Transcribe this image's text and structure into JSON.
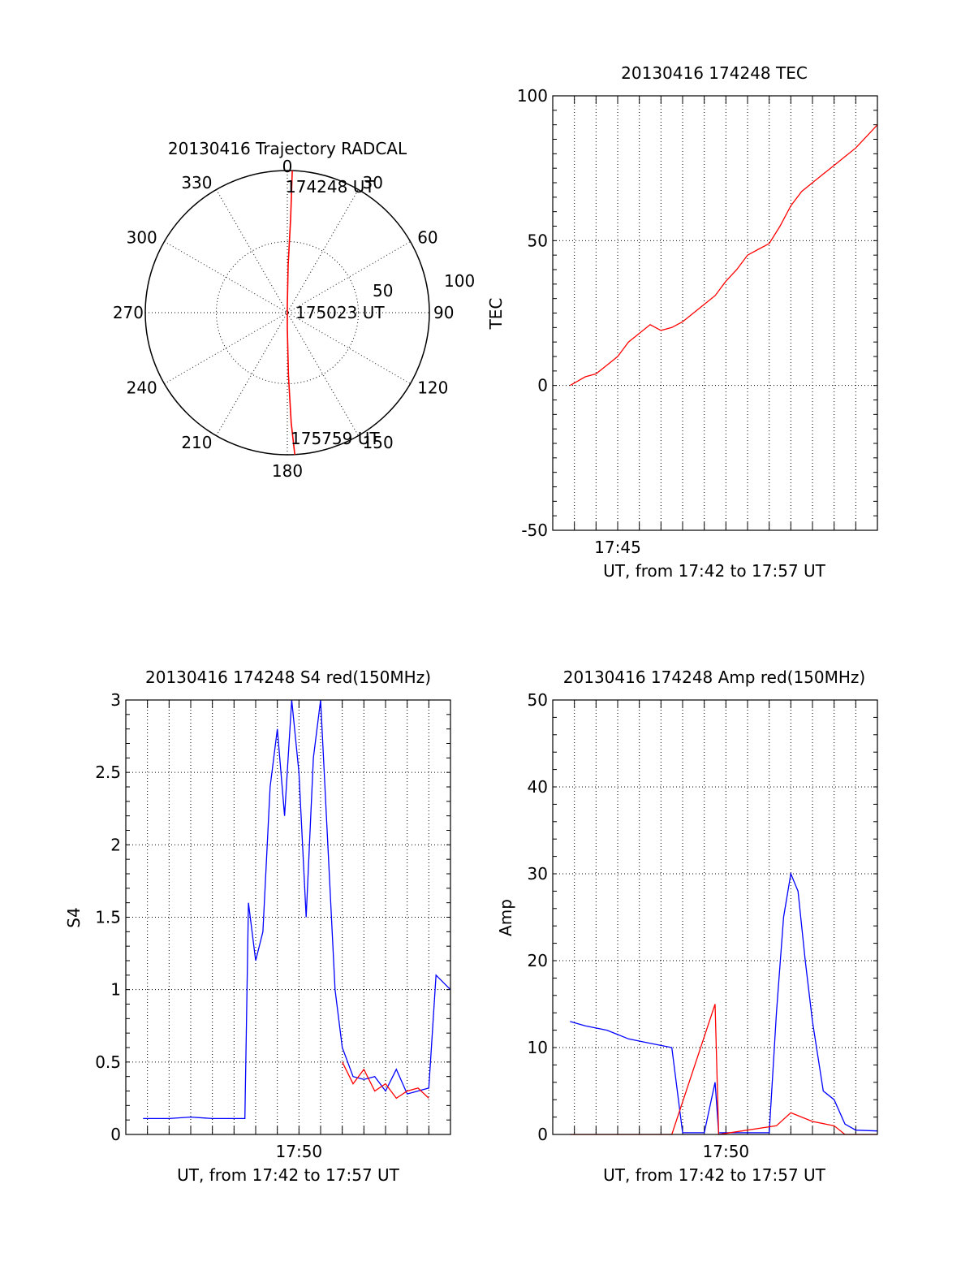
{
  "chart_data": [
    {
      "id": "polar",
      "type": "scatter",
      "title": "20130416 Trajectory RADCAL",
      "angle_labels": [
        "0",
        "30",
        "60",
        "90",
        "120",
        "150",
        "180",
        "210",
        "240",
        "270",
        "300",
        "330"
      ],
      "radial_labels": [
        "50",
        "100"
      ],
      "radial_range": [
        0,
        100
      ],
      "grid": true,
      "annotations": {
        "start": "174248 UT",
        "middle": "175023 UT",
        "end": "175759 UT"
      },
      "track_color": "#ff0000",
      "track": [
        {
          "az": 2,
          "zen": 90
        },
        {
          "az": 2,
          "zen": 60
        },
        {
          "az": 1,
          "zen": 30
        },
        {
          "az": 0,
          "zen": 5
        },
        {
          "az": 180,
          "zen": 10
        },
        {
          "az": 179,
          "zen": 40
        },
        {
          "az": 178,
          "zen": 70
        },
        {
          "az": 177,
          "zen": 90
        }
      ]
    },
    {
      "id": "tec",
      "type": "line",
      "title": "20130416 174248 TEC",
      "ylabel": "TEC",
      "xlabel": "UT, from 17:42 to 17:57 UT",
      "xlim": [
        "17:42",
        "17:57"
      ],
      "ylim": [
        -50,
        100
      ],
      "yticks": [
        "-50",
        "0",
        "50",
        "100"
      ],
      "xtick_labels": [
        {
          "value": "17:45",
          "label": "17:45"
        }
      ],
      "grid": true,
      "color": "#ff0000",
      "series": [
        {
          "points": [
            [
              "17:42:48",
              0
            ],
            [
              "17:43:30",
              3
            ],
            [
              "17:44:00",
              4
            ],
            [
              "17:44:30",
              7
            ],
            [
              "17:45:00",
              10
            ],
            [
              "17:45:30",
              15
            ],
            [
              "17:46:00",
              18
            ],
            [
              "17:46:30",
              21
            ],
            [
              "17:47:00",
              19
            ],
            [
              "17:47:30",
              20
            ],
            [
              "17:48:00",
              22
            ],
            [
              "17:48:30",
              25
            ],
            [
              "17:49:00",
              28
            ],
            [
              "17:49:30",
              31
            ],
            [
              "17:50:00",
              36
            ],
            [
              "17:50:30",
              40
            ],
            [
              "17:51:00",
              45
            ],
            [
              "17:51:30",
              47
            ],
            [
              "17:52:00",
              49
            ],
            [
              "17:52:30",
              55
            ],
            [
              "17:53:00",
              62
            ],
            [
              "17:53:30",
              67
            ],
            [
              "17:54:00",
              70
            ],
            [
              "17:54:30",
              73
            ],
            [
              "17:55:00",
              76
            ],
            [
              "17:55:30",
              79
            ],
            [
              "17:56:00",
              82
            ],
            [
              "17:56:30",
              86
            ],
            [
              "17:57:00",
              90
            ]
          ]
        }
      ]
    },
    {
      "id": "s4",
      "type": "line",
      "title": "20130416 174248 S4 red(150MHz)",
      "ylabel": "S4",
      "xlabel": "UT, from 17:42 to 17:57 UT",
      "xlim": [
        "17:42",
        "17:57"
      ],
      "ylim": [
        0,
        3
      ],
      "yticks": [
        "0",
        "0.5",
        "1",
        "1.5",
        "2",
        "2.5",
        "3"
      ],
      "xtick_labels": [
        {
          "value": "17:50",
          "label": "17:50"
        }
      ],
      "grid": true,
      "series": [
        {
          "color": "#0000ff",
          "points": [
            [
              "17:42:48",
              0.11
            ],
            [
              "17:44:00",
              0.11
            ],
            [
              "17:45:00",
              0.12
            ],
            [
              "17:46:00",
              0.11
            ],
            [
              "17:47:00",
              0.11
            ],
            [
              "17:47:30",
              0.11
            ],
            [
              "17:47:40",
              1.6
            ],
            [
              "17:48:00",
              1.2
            ],
            [
              "17:48:20",
              1.4
            ],
            [
              "17:48:40",
              2.4
            ],
            [
              "17:49:00",
              2.8
            ],
            [
              "17:49:20",
              2.2
            ],
            [
              "17:49:40",
              3.0
            ],
            [
              "17:50:00",
              2.5
            ],
            [
              "17:50:20",
              1.5
            ],
            [
              "17:50:40",
              2.6
            ],
            [
              "17:51:00",
              3.0
            ],
            [
              "17:51:20",
              2.0
            ],
            [
              "17:51:40",
              1.0
            ],
            [
              "17:52:00",
              0.6
            ],
            [
              "17:52:30",
              0.4
            ],
            [
              "17:53:00",
              0.38
            ],
            [
              "17:53:30",
              0.4
            ],
            [
              "17:54:00",
              0.3
            ],
            [
              "17:54:30",
              0.45
            ],
            [
              "17:55:00",
              0.28
            ],
            [
              "17:55:30",
              0.3
            ],
            [
              "17:56:00",
              0.32
            ],
            [
              "17:56:20",
              1.1
            ],
            [
              "17:57:00",
              1.0
            ]
          ]
        },
        {
          "color": "#ff0000",
          "points": [
            [
              "17:52:00",
              0.5
            ],
            [
              "17:52:30",
              0.35
            ],
            [
              "17:53:00",
              0.45
            ],
            [
              "17:53:30",
              0.3
            ],
            [
              "17:54:00",
              0.35
            ],
            [
              "17:54:30",
              0.25
            ],
            [
              "17:55:00",
              0.3
            ],
            [
              "17:55:30",
              0.32
            ],
            [
              "17:56:00",
              0.25
            ]
          ]
        }
      ]
    },
    {
      "id": "amp",
      "type": "line",
      "title": "20130416 174248 Amp red(150MHz)",
      "ylabel": "Amp",
      "xlabel": "UT, from 17:42 to 17:57 UT",
      "xlim": [
        "17:42",
        "17:57"
      ],
      "ylim": [
        0,
        50
      ],
      "yticks": [
        "0",
        "10",
        "20",
        "30",
        "40",
        "50"
      ],
      "xtick_labels": [
        {
          "value": "17:50",
          "label": "17:50"
        }
      ],
      "grid": true,
      "series": [
        {
          "color": "#0000ff",
          "points": [
            [
              "17:42:48",
              13
            ],
            [
              "17:43:30",
              12.5
            ],
            [
              "17:44:30",
              12
            ],
            [
              "17:45:30",
              11
            ],
            [
              "17:46:30",
              10.5
            ],
            [
              "17:47:30",
              10
            ],
            [
              "17:48:00",
              0.2
            ],
            [
              "17:49:00",
              0.2
            ],
            [
              "17:49:30",
              6
            ],
            [
              "17:49:40",
              0.2
            ],
            [
              "17:51:00",
              0.2
            ],
            [
              "17:52:00",
              0.2
            ],
            [
              "17:52:20",
              14
            ],
            [
              "17:52:40",
              25
            ],
            [
              "17:53:00",
              30
            ],
            [
              "17:53:20",
              28
            ],
            [
              "17:53:40",
              20
            ],
            [
              "17:54:00",
              13
            ],
            [
              "17:54:30",
              5
            ],
            [
              "17:55:00",
              4
            ],
            [
              "17:55:30",
              1.2
            ],
            [
              "17:56:00",
              0.5
            ],
            [
              "17:57:00",
              0.4
            ]
          ]
        },
        {
          "color": "#ff0000",
          "points": [
            [
              "17:42:48",
              0
            ],
            [
              "17:47:30",
              0
            ],
            [
              "17:49:30",
              15
            ],
            [
              "17:49:40",
              0
            ],
            [
              "17:52:20",
              1
            ],
            [
              "17:53:00",
              2.5
            ],
            [
              "17:54:00",
              1.5
            ],
            [
              "17:55:00",
              1.0
            ],
            [
              "17:55:30",
              0
            ],
            [
              "17:57:00",
              0
            ]
          ]
        }
      ]
    }
  ]
}
